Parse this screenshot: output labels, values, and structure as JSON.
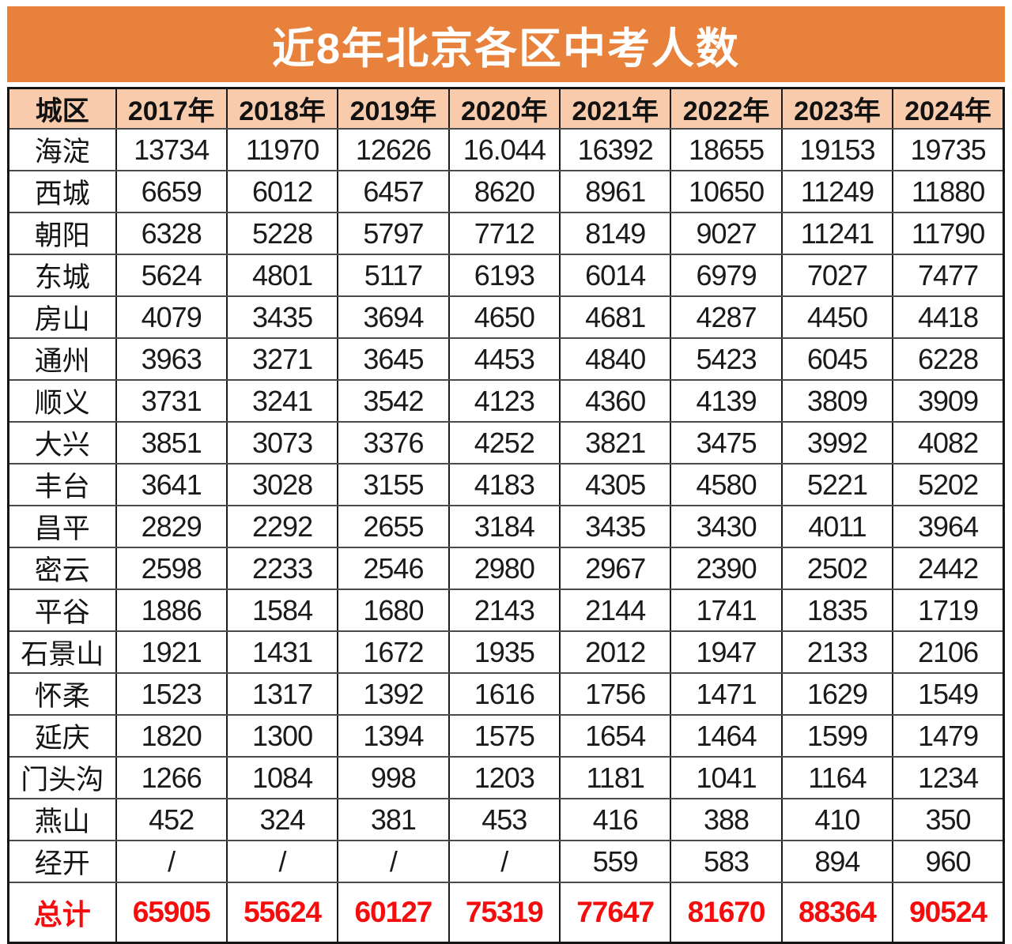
{
  "page": {
    "title": "近8年北京各区中考人数"
  },
  "colors": {
    "banner_bg": "#E8813C",
    "banner_text": "#FFFFFF",
    "header_bg": "#F8CBAD",
    "header_text": "#111111",
    "cell_bg": "#FFFFFF",
    "cell_text": "#1A1A1A",
    "total_text": "#F50D0D",
    "grid_h_line": "#4A4A4A",
    "grid_v_line": "#1C1C1C",
    "outer_border": "#141414"
  },
  "chart_data": {
    "type": "table",
    "title": "近8年北京各区中考人数",
    "columns": [
      "城区",
      "2017年",
      "2018年",
      "2019年",
      "2020年",
      "2021年",
      "2022年",
      "2023年",
      "2024年"
    ],
    "rows": [
      {
        "district": "海淀",
        "values": [
          "13734",
          "11970",
          "12626",
          "16.044",
          "16392",
          "18655",
          "19153",
          "19735"
        ]
      },
      {
        "district": "西城",
        "values": [
          "6659",
          "6012",
          "6457",
          "8620",
          "8961",
          "10650",
          "11249",
          "11880"
        ]
      },
      {
        "district": "朝阳",
        "values": [
          "6328",
          "5228",
          "5797",
          "7712",
          "8149",
          "9027",
          "11241",
          "11790"
        ]
      },
      {
        "district": "东城",
        "values": [
          "5624",
          "4801",
          "5117",
          "6193",
          "6014",
          "6979",
          "7027",
          "7477"
        ]
      },
      {
        "district": "房山",
        "values": [
          "4079",
          "3435",
          "3694",
          "4650",
          "4681",
          "4287",
          "4450",
          "4418"
        ]
      },
      {
        "district": "通州",
        "values": [
          "3963",
          "3271",
          "3645",
          "4453",
          "4840",
          "5423",
          "6045",
          "6228"
        ]
      },
      {
        "district": "顺义",
        "values": [
          "3731",
          "3241",
          "3542",
          "4123",
          "4360",
          "4139",
          "3809",
          "3909"
        ]
      },
      {
        "district": "大兴",
        "values": [
          "3851",
          "3073",
          "3376",
          "4252",
          "3821",
          "3475",
          "3992",
          "4082"
        ]
      },
      {
        "district": "丰台",
        "values": [
          "3641",
          "3028",
          "3155",
          "4183",
          "4305",
          "4580",
          "5221",
          "5202"
        ]
      },
      {
        "district": "昌平",
        "values": [
          "2829",
          "2292",
          "2655",
          "3184",
          "3435",
          "3430",
          "4011",
          "3964"
        ]
      },
      {
        "district": "密云",
        "values": [
          "2598",
          "2233",
          "2546",
          "2980",
          "2967",
          "2390",
          "2502",
          "2442"
        ]
      },
      {
        "district": "平谷",
        "values": [
          "1886",
          "1584",
          "1680",
          "2143",
          "2144",
          "1741",
          "1835",
          "1719"
        ]
      },
      {
        "district": "石景山",
        "values": [
          "1921",
          "1431",
          "1672",
          "1935",
          "2012",
          "1947",
          "2133",
          "2106"
        ]
      },
      {
        "district": "怀柔",
        "values": [
          "1523",
          "1317",
          "1392",
          "1616",
          "1756",
          "1471",
          "1629",
          "1549"
        ]
      },
      {
        "district": "延庆",
        "values": [
          "1820",
          "1300",
          "1394",
          "1575",
          "1654",
          "1464",
          "1599",
          "1479"
        ]
      },
      {
        "district": "门头沟",
        "values": [
          "1266",
          "1084",
          "998",
          "1203",
          "1181",
          "1041",
          "1164",
          "1234"
        ]
      },
      {
        "district": "燕山",
        "values": [
          "452",
          "324",
          "381",
          "453",
          "416",
          "388",
          "410",
          "350"
        ]
      },
      {
        "district": "经开",
        "values": [
          "/",
          "/",
          "/",
          "/",
          "559",
          "583",
          "894",
          "960"
        ]
      }
    ],
    "total_row": {
      "district": "总计",
      "values": [
        "65905",
        "55624",
        "60127",
        "75319",
        "77647",
        "81670",
        "88364",
        "90524"
      ]
    },
    "legend": "none",
    "grid": "on"
  }
}
